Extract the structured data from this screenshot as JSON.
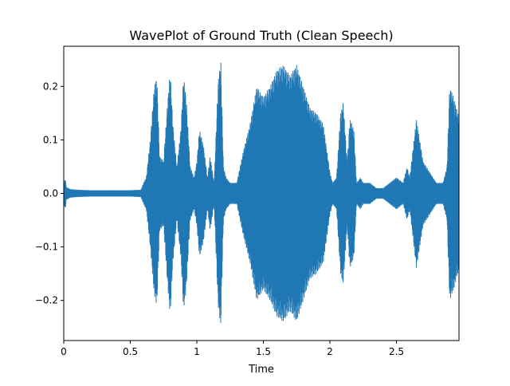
{
  "chart_data": {
    "type": "line",
    "title": "WavePlot of Ground Truth (Clean Speech)",
    "xlabel": "Time",
    "ylabel": "",
    "xlim": [
      0,
      2.97
    ],
    "ylim": [
      -0.275,
      0.275
    ],
    "xticks": [
      0,
      0.5,
      1,
      1.5,
      2,
      2.5
    ],
    "xtick_labels": [
      "0",
      "0.5",
      "1",
      "1.5",
      "2",
      "2.5"
    ],
    "yticks": [
      -0.2,
      -0.1,
      0.0,
      0.1,
      0.2
    ],
    "ytick_labels": [
      "−0.2",
      "−0.1",
      "0.0",
      "0.1",
      "0.2"
    ],
    "grid": false,
    "series": [
      {
        "color": "#1f77b4",
        "envelope": {
          "t": [
            0.0,
            0.01,
            0.02,
            0.05,
            0.1,
            0.2,
            0.3,
            0.4,
            0.5,
            0.58,
            0.6,
            0.62,
            0.65,
            0.68,
            0.7,
            0.72,
            0.75,
            0.78,
            0.8,
            0.82,
            0.85,
            0.88,
            0.9,
            0.92,
            0.95,
            0.98,
            1.0,
            1.02,
            1.05,
            1.08,
            1.1,
            1.13,
            1.16,
            1.18,
            1.2,
            1.22,
            1.25,
            1.28,
            1.3,
            1.35,
            1.4,
            1.45,
            1.5,
            1.55,
            1.6,
            1.65,
            1.7,
            1.75,
            1.8,
            1.85,
            1.9,
            1.95,
            2.0,
            2.02,
            2.05,
            2.08,
            2.1,
            2.13,
            2.15,
            2.18,
            2.2,
            2.23,
            2.25,
            2.28,
            2.3,
            2.35,
            2.4,
            2.45,
            2.5,
            2.55,
            2.58,
            2.6,
            2.65,
            2.7,
            2.75,
            2.8,
            2.85,
            2.88,
            2.9,
            2.93,
            2.96
          ],
          "upper": [
            0.01,
            0.031,
            0.012,
            0.008,
            0.007,
            0.006,
            0.006,
            0.006,
            0.006,
            0.007,
            0.02,
            0.03,
            0.1,
            0.2,
            0.22,
            0.07,
            0.06,
            0.17,
            0.23,
            0.13,
            0.05,
            0.12,
            0.22,
            0.18,
            0.05,
            0.03,
            0.06,
            0.12,
            0.09,
            0.03,
            0.07,
            0.02,
            0.21,
            0.25,
            0.05,
            0.03,
            0.02,
            0.02,
            0.02,
            0.08,
            0.13,
            0.2,
            0.18,
            0.2,
            0.23,
            0.24,
            0.22,
            0.24,
            0.2,
            0.16,
            0.15,
            0.13,
            0.04,
            0.02,
            0.03,
            0.15,
            0.17,
            0.06,
            0.14,
            0.12,
            0.02,
            0.03,
            0.02,
            0.02,
            0.02,
            0.01,
            0.01,
            0.02,
            0.03,
            0.02,
            0.05,
            0.03,
            0.14,
            0.06,
            0.04,
            0.02,
            0.02,
            0.05,
            0.2,
            0.18,
            0.15
          ],
          "lower": [
            -0.008,
            -0.033,
            -0.012,
            -0.008,
            -0.007,
            -0.006,
            -0.006,
            -0.006,
            -0.006,
            -0.007,
            -0.02,
            -0.03,
            -0.1,
            -0.19,
            -0.21,
            -0.07,
            -0.06,
            -0.17,
            -0.23,
            -0.13,
            -0.05,
            -0.12,
            -0.22,
            -0.18,
            -0.05,
            -0.03,
            -0.06,
            -0.12,
            -0.09,
            -0.03,
            -0.07,
            -0.02,
            -0.21,
            -0.25,
            -0.05,
            -0.03,
            -0.02,
            -0.02,
            -0.02,
            -0.08,
            -0.13,
            -0.2,
            -0.18,
            -0.2,
            -0.23,
            -0.24,
            -0.22,
            -0.24,
            -0.2,
            -0.16,
            -0.15,
            -0.13,
            -0.04,
            -0.02,
            -0.03,
            -0.15,
            -0.17,
            -0.06,
            -0.14,
            -0.12,
            -0.02,
            -0.03,
            -0.02,
            -0.02,
            -0.02,
            -0.01,
            -0.01,
            -0.02,
            -0.03,
            -0.02,
            -0.05,
            -0.03,
            -0.14,
            -0.06,
            -0.04,
            -0.02,
            -0.02,
            -0.05,
            -0.2,
            -0.18,
            -0.15
          ]
        }
      }
    ]
  }
}
